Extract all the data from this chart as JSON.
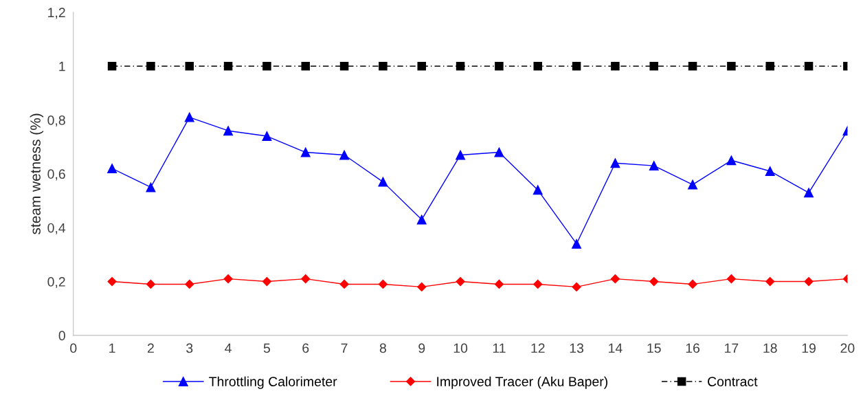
{
  "chart_data": {
    "type": "line",
    "ylabel": "steam wetness (%)",
    "x": [
      1,
      2,
      3,
      4,
      5,
      6,
      7,
      8,
      9,
      10,
      11,
      12,
      13,
      14,
      15,
      16,
      17,
      18,
      19,
      20
    ],
    "series": [
      {
        "name": "Throttling Calorimeter",
        "color": "#0000ff",
        "marker": "triangle",
        "line_style": "solid",
        "values": [
          0.62,
          0.55,
          0.81,
          0.76,
          0.74,
          0.68,
          0.67,
          0.57,
          0.43,
          0.67,
          0.68,
          0.54,
          0.34,
          0.64,
          0.63,
          0.56,
          0.65,
          0.61,
          0.53,
          0.76
        ]
      },
      {
        "name": "Improved Tracer (Aku Baper)",
        "color": "#ff0000",
        "marker": "diamond",
        "line_style": "solid",
        "values": [
          0.2,
          0.19,
          0.19,
          0.21,
          0.2,
          0.21,
          0.19,
          0.19,
          0.18,
          0.2,
          0.19,
          0.19,
          0.18,
          0.21,
          0.2,
          0.19,
          0.21,
          0.2,
          0.2,
          0.21
        ]
      },
      {
        "name": "Contract",
        "color": "#000000",
        "marker": "square",
        "line_style": "dashdot",
        "values": [
          1,
          1,
          1,
          1,
          1,
          1,
          1,
          1,
          1,
          1,
          1,
          1,
          1,
          1,
          1,
          1,
          1,
          1,
          1,
          1
        ]
      }
    ],
    "xlim": [
      0,
      20
    ],
    "xticks": [
      0,
      1,
      2,
      3,
      4,
      5,
      6,
      7,
      8,
      9,
      10,
      11,
      12,
      13,
      14,
      15,
      16,
      17,
      18,
      19,
      20
    ],
    "ylim": [
      0,
      1.2
    ],
    "yticks": [
      0,
      {
        "value": 0.2,
        "label": "0,2"
      },
      {
        "value": 0.4,
        "label": "0,4"
      },
      {
        "value": 0.6,
        "label": "0,6"
      },
      {
        "value": 0.8,
        "label": "0,8"
      },
      1,
      {
        "value": 1.2,
        "label": "1,2"
      }
    ],
    "grid": false,
    "legend": "bottom"
  }
}
